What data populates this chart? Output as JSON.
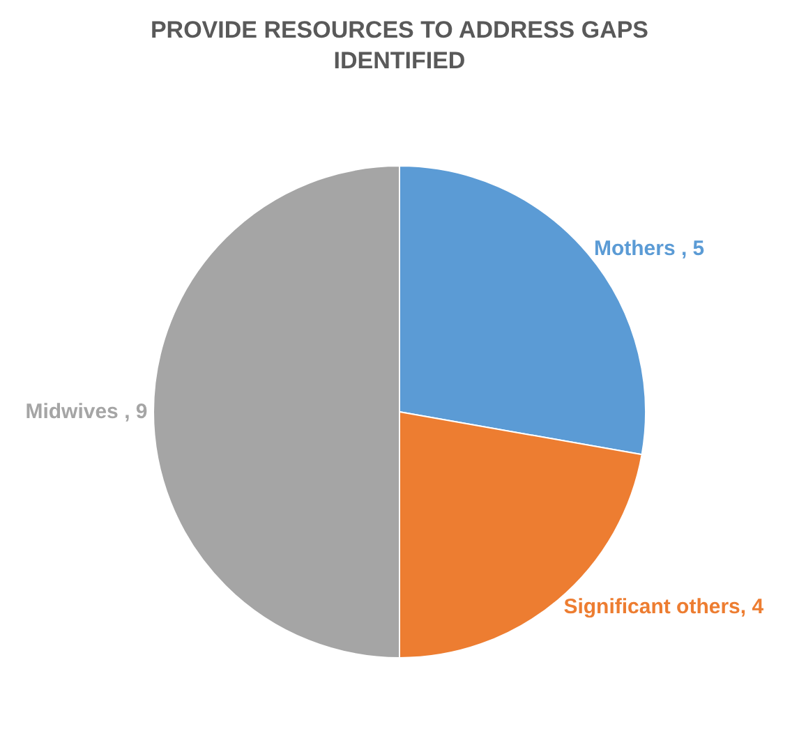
{
  "chart_data": {
    "type": "pie",
    "title": "PROVIDE RESOURCES TO ADDRESS GAPS IDENTIFIED",
    "categories": [
      "Mothers",
      "Significant others",
      "Midwives"
    ],
    "values": [
      5,
      4,
      9
    ],
    "colors": [
      "#5b9bd5",
      "#ed7d31",
      "#a5a5a5"
    ],
    "value_labels": [
      " , 5",
      ", 4",
      " , 9"
    ],
    "legend": false
  }
}
